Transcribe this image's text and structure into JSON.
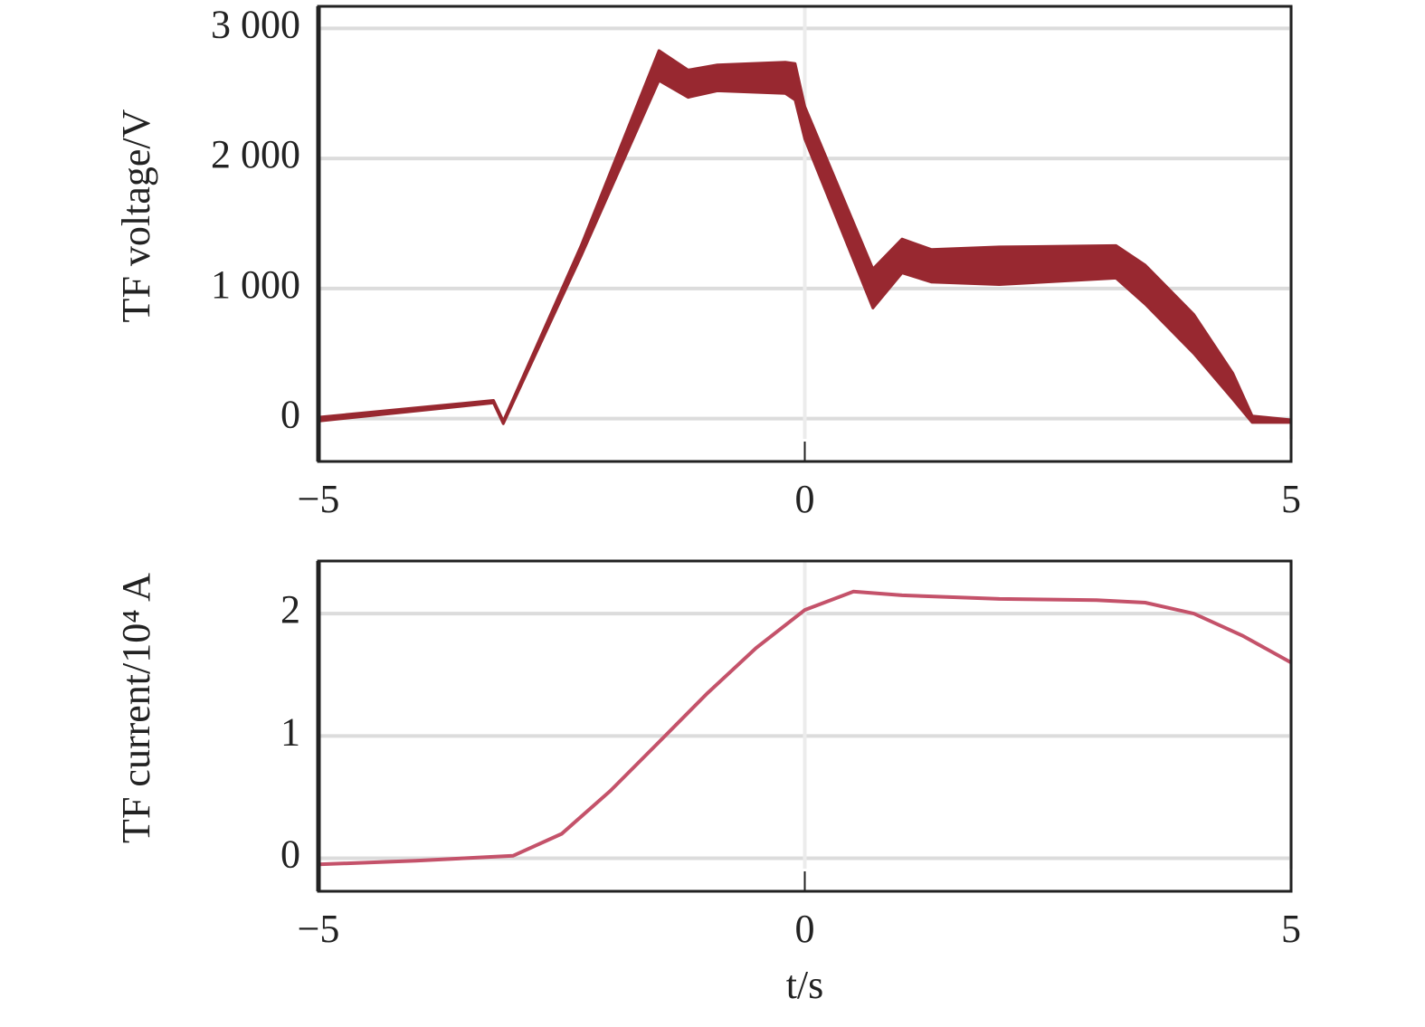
{
  "chart_data": [
    {
      "type": "band",
      "ylabel": "TF voltage/V",
      "color": "#982830",
      "x": [
        -5,
        -3.2,
        -3.1,
        -2.3,
        -1.5,
        -1.2,
        -0.9,
        -0.2,
        -0.1,
        0,
        0.7,
        1.0,
        1.3,
        2.0,
        3.2,
        3.5,
        4.0,
        4.4,
        4.6,
        5
      ],
      "lower": [
        -20,
        120,
        -40,
        1250,
        2600,
        2470,
        2520,
        2500,
        2450,
        2150,
        850,
        1120,
        1050,
        1030,
        1080,
        880,
        500,
        150,
        -30,
        -30
      ],
      "upper": [
        10,
        140,
        -20,
        1330,
        2830,
        2680,
        2720,
        2740,
        2730,
        2400,
        1150,
        1380,
        1300,
        1320,
        1330,
        1180,
        800,
        350,
        20,
        -10
      ],
      "xlim": [
        -5,
        5
      ],
      "xticks": [
        {
          "value": -5,
          "label": "−5"
        },
        0,
        5
      ],
      "ylim": [
        -330,
        3170
      ],
      "yticks": [
        0,
        {
          "value": 1000,
          "label": "1 000"
        },
        {
          "value": 2000,
          "label": "2 000"
        },
        {
          "value": 3000,
          "label": "3 000"
        }
      ],
      "grid": true
    },
    {
      "type": "line",
      "ylabel": "TF current/10⁴ A",
      "xlabel": "t/s",
      "color": "#c4526a",
      "x": [
        -5,
        -4,
        -3,
        -2.5,
        -2,
        -1.5,
        -1,
        -0.5,
        0,
        0.5,
        1,
        2,
        3,
        3.5,
        4,
        4.5,
        5
      ],
      "values": [
        -0.05,
        -0.02,
        0.02,
        0.2,
        0.55,
        0.95,
        1.35,
        1.72,
        2.03,
        2.18,
        2.15,
        2.12,
        2.11,
        2.09,
        2.0,
        1.82,
        1.6
      ],
      "xlim": [
        -5,
        5
      ],
      "xticks": [
        {
          "value": -5,
          "label": "−5"
        },
        0,
        5
      ],
      "ylim": [
        -0.27,
        2.43
      ],
      "yticks": [
        0,
        1,
        2
      ],
      "grid": true
    }
  ]
}
